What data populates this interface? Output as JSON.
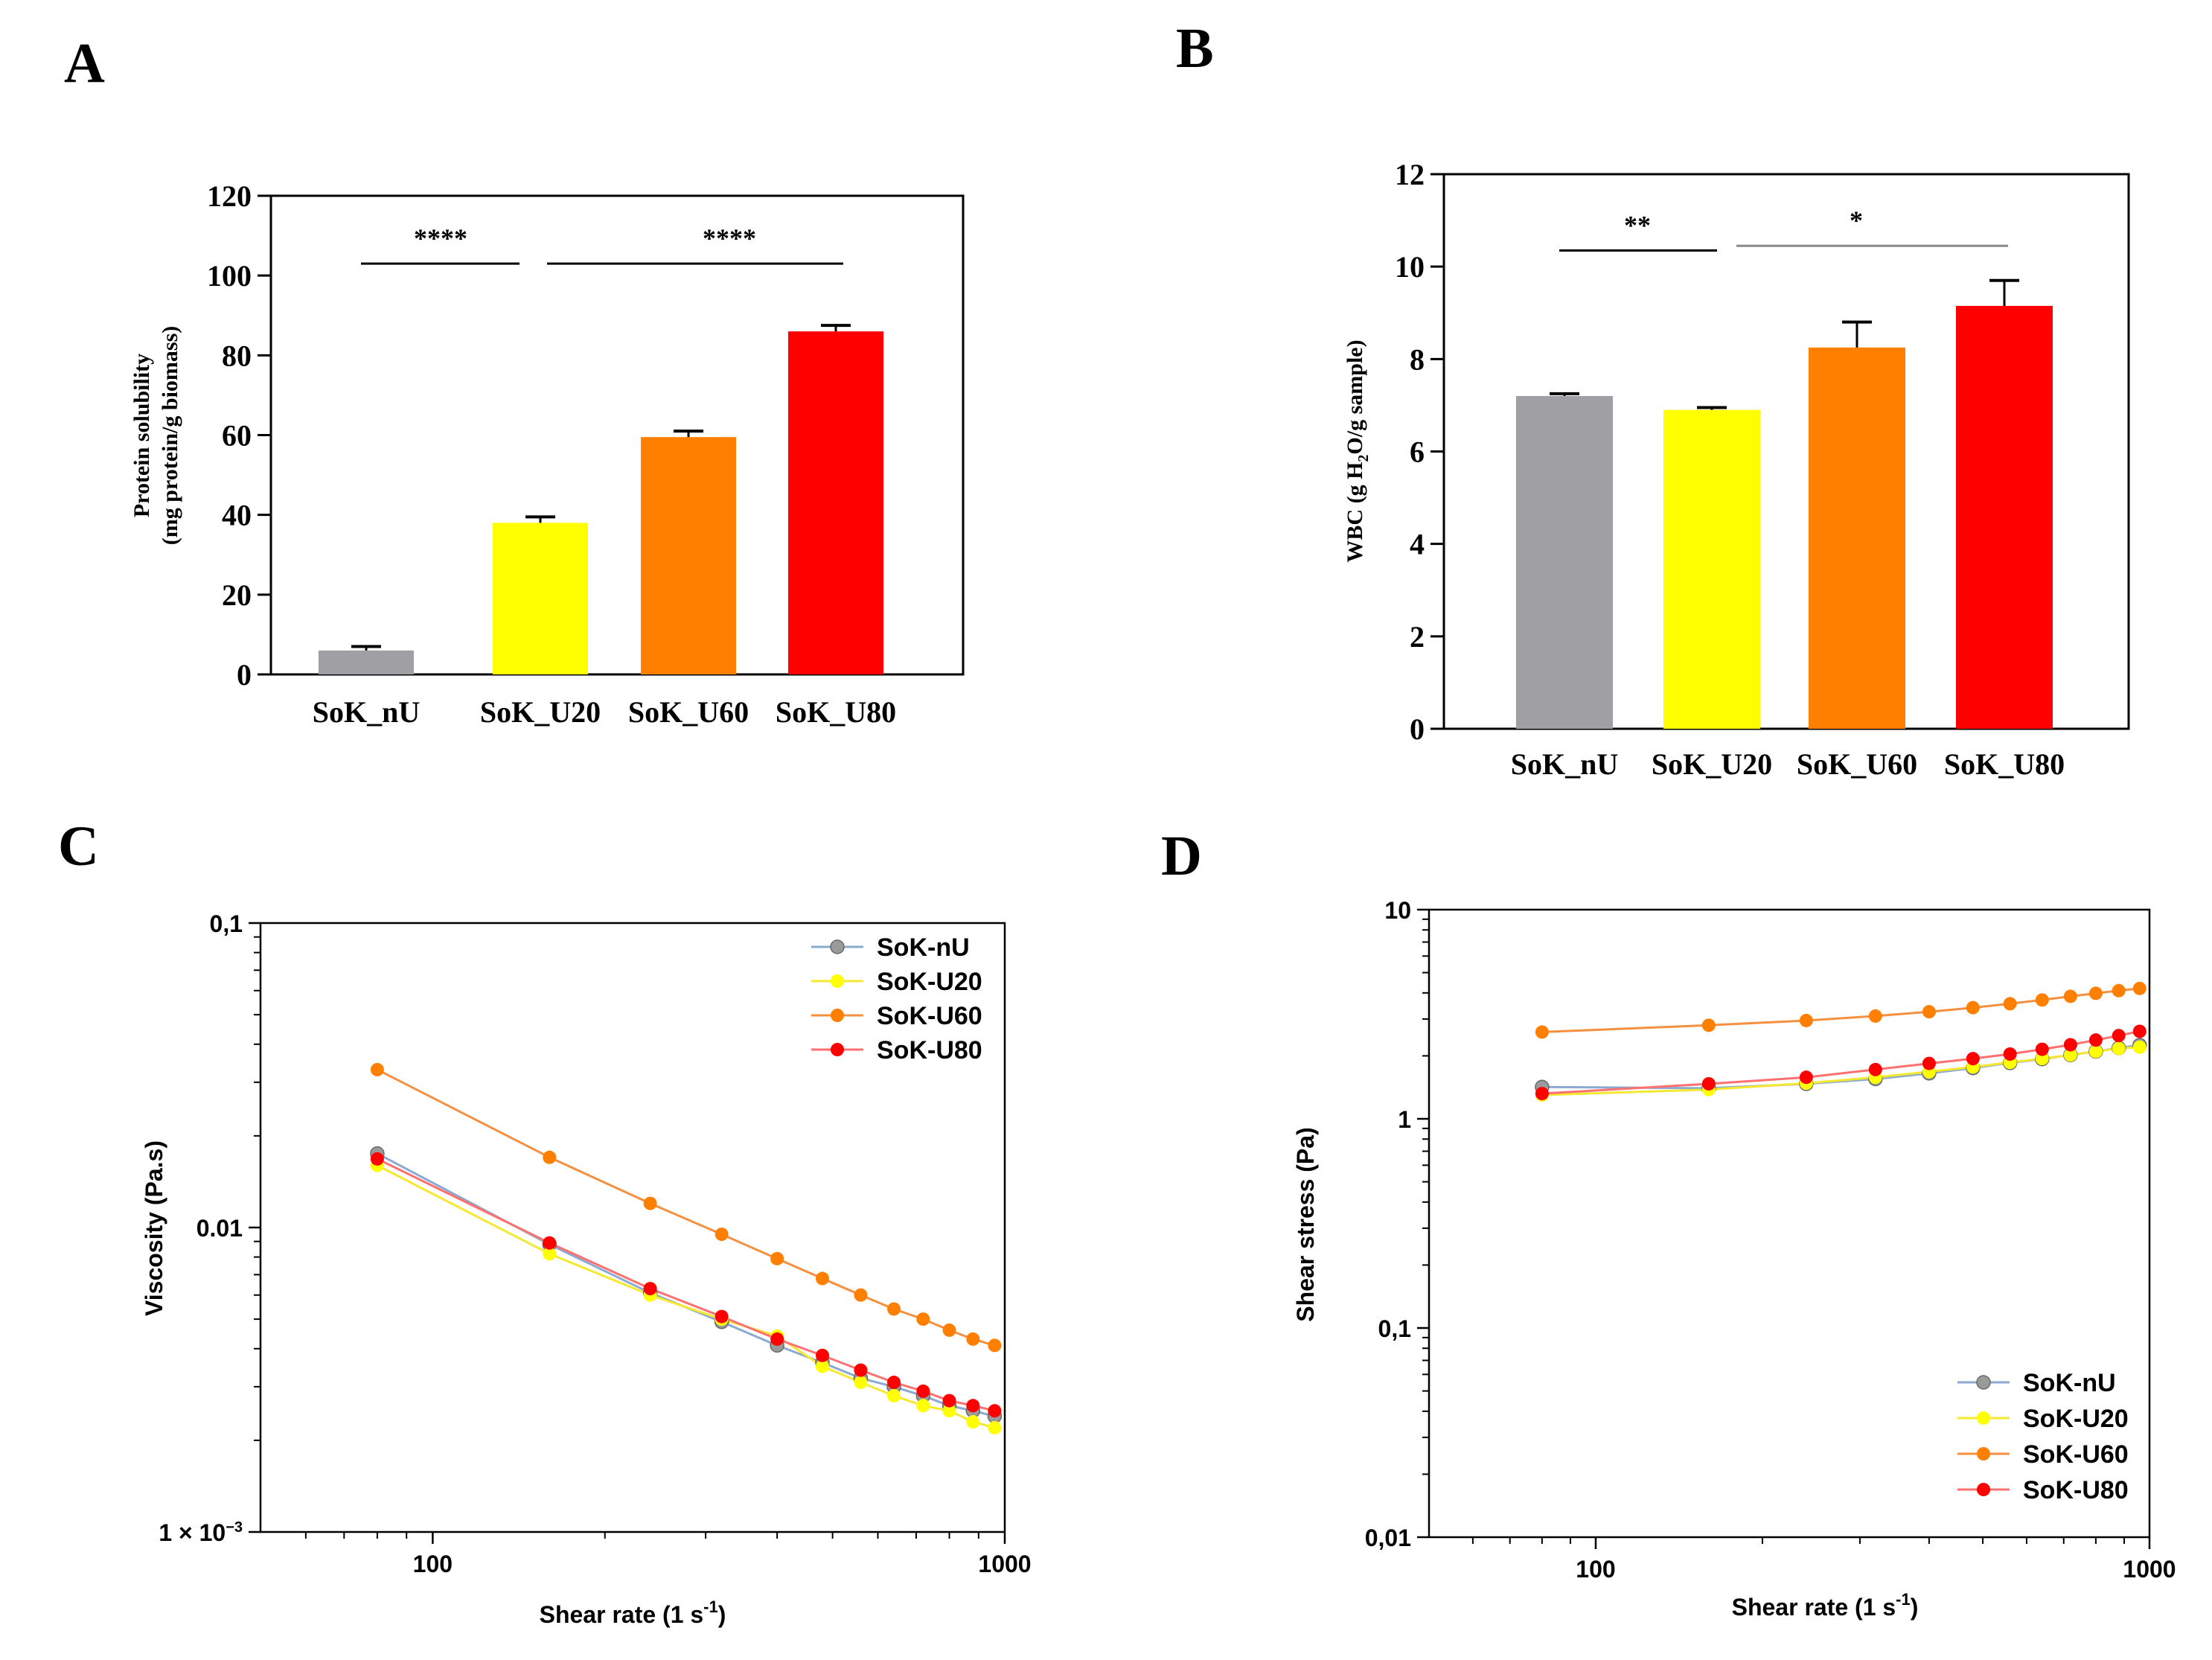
{
  "colors": {
    "SoK-nU": "#a0a0a4",
    "SoK-U20": "#ffff00",
    "SoK-U60": "#ff8000",
    "SoK-U80": "#ff0000",
    "U60-light": "#ffa030",
    "line-nU": "#8aaad0",
    "line-U20": "#f5e830",
    "line-U60": "#f59040",
    "line-U80": "#ff7070",
    "axis": "#000000",
    "tick-blue": "#2050a0"
  },
  "panel_letters": [
    "A",
    "B",
    "C",
    "D"
  ],
  "chart_data": [
    {
      "panel": "A",
      "type": "bar",
      "ylabel_line1": "Protein solubility",
      "ylabel_line2": "(mg protein/g biomass)",
      "ylim": [
        0,
        120
      ],
      "yticks": [
        "0",
        "20",
        "40",
        "60",
        "80",
        "100",
        "120"
      ],
      "categories": [
        "SoK_nU",
        "SoK_U20",
        "SoK_U60",
        "SoK_U80"
      ],
      "values": [
        6,
        38,
        59.5,
        86
      ],
      "errors": [
        1,
        1.5,
        1.5,
        1.5
      ],
      "significance": [
        {
          "label": "****",
          "from": 0,
          "to": 1,
          "y": 103
        },
        {
          "label": "****",
          "from": 1,
          "to": 3,
          "y": 103
        }
      ]
    },
    {
      "panel": "B",
      "type": "bar",
      "ylabel": "WBC (g H2O/g sample)",
      "ylim": [
        0,
        12
      ],
      "yticks": [
        "0",
        "2",
        "4",
        "6",
        "8",
        "10",
        "12"
      ],
      "categories": [
        "SoK_nU",
        "SoK_U20",
        "SoK_U60",
        "SoK_U80"
      ],
      "values": [
        7.2,
        6.9,
        8.25,
        9.15
      ],
      "errors": [
        0.05,
        0.05,
        0.55,
        0.55
      ],
      "significance": [
        {
          "label": "**",
          "from": 0,
          "to": 1,
          "y": 10.35
        },
        {
          "label": "*",
          "from": 1,
          "to": 3,
          "y": 10.45
        }
      ]
    },
    {
      "panel": "C",
      "type": "line",
      "xscale": "log",
      "yscale": "log",
      "xlabel": "Shear rate (1 s",
      "xlabel_sup": "-1",
      "xlabel_close": ")",
      "ylabel": "Viscosity (Pa.s)",
      "xlim": [
        50,
        1000
      ],
      "ylim": [
        0.001,
        0.1
      ],
      "xticks": [
        "100",
        "1000"
      ],
      "yticks": [
        "0,1",
        "0.01",
        "1 × 10"
      ],
      "ytick_exp": "−3",
      "legend_position": "top-right",
      "x": [
        80,
        160,
        240,
        320,
        400,
        480,
        560,
        640,
        720,
        800,
        880,
        960
      ],
      "series": [
        {
          "name": "SoK-nU",
          "values": [
            0.0175,
            0.0088,
            0.0061,
            0.0049,
            0.0041,
            0.0036,
            0.0032,
            0.003,
            0.0028,
            0.0026,
            0.0025,
            0.0024
          ]
        },
        {
          "name": "SoK-U20",
          "values": [
            0.016,
            0.0082,
            0.006,
            0.005,
            0.0044,
            0.0035,
            0.0031,
            0.0028,
            0.0026,
            0.0025,
            0.0023,
            0.0022
          ]
        },
        {
          "name": "SoK-U60",
          "values": [
            0.033,
            0.017,
            0.012,
            0.0095,
            0.0079,
            0.0068,
            0.006,
            0.0054,
            0.005,
            0.0046,
            0.0043,
            0.0041
          ]
        },
        {
          "name": "SoK-U80",
          "values": [
            0.0168,
            0.0089,
            0.0063,
            0.0051,
            0.0043,
            0.0038,
            0.0034,
            0.0031,
            0.0029,
            0.0027,
            0.0026,
            0.0025
          ]
        }
      ]
    },
    {
      "panel": "D",
      "type": "line",
      "xscale": "log",
      "yscale": "log",
      "xlabel": "Shear rate (1 s",
      "xlabel_sup": "-1",
      "xlabel_close": ")",
      "ylabel": "Shear stress (Pa)",
      "xlim": [
        50,
        1000
      ],
      "ylim": [
        0.01,
        10
      ],
      "xticks": [
        "100",
        "1000"
      ],
      "yticks": [
        "0,01",
        "0,1",
        "1",
        "10"
      ],
      "legend_position": "bottom-right",
      "x": [
        80,
        160,
        240,
        320,
        400,
        480,
        560,
        640,
        720,
        800,
        880,
        960
      ],
      "series": [
        {
          "name": "SoK-nU",
          "values": [
            1.42,
            1.4,
            1.47,
            1.55,
            1.65,
            1.75,
            1.85,
            1.93,
            2.02,
            2.1,
            2.18,
            2.25
          ]
        },
        {
          "name": "SoK-U20",
          "values": [
            1.3,
            1.38,
            1.48,
            1.58,
            1.68,
            1.77,
            1.86,
            1.94,
            2.02,
            2.1,
            2.17,
            2.2
          ]
        },
        {
          "name": "SoK-U60",
          "values": [
            2.6,
            2.8,
            2.95,
            3.1,
            3.25,
            3.4,
            3.55,
            3.7,
            3.85,
            3.98,
            4.1,
            4.2
          ]
        },
        {
          "name": "SoK-U80",
          "values": [
            1.32,
            1.47,
            1.58,
            1.72,
            1.84,
            1.94,
            2.04,
            2.15,
            2.26,
            2.38,
            2.5,
            2.62
          ]
        }
      ]
    }
  ]
}
